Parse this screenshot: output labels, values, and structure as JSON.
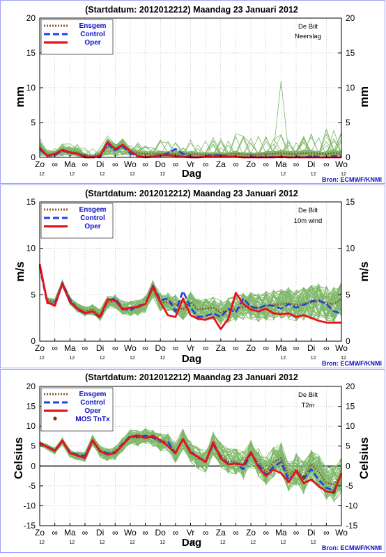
{
  "chart_data": [
    {
      "type": "line",
      "title": "(Startdatum: 2012012212)   Maandag   23 Januari   2012",
      "station": "De Bilt",
      "variable": "Neerslag",
      "ylabel": "mm",
      "xlabel": "Dag",
      "ylim": [
        0,
        20
      ],
      "yticks": [
        "0",
        "5",
        "10",
        "15",
        "20"
      ],
      "yticks_right": [
        "0",
        "5",
        "10",
        "15",
        "20"
      ],
      "xticks": [
        "Zo",
        "∞",
        "Ma",
        "∞",
        "Di",
        "∞",
        "Wo",
        "∞",
        "Do",
        "∞",
        "Vr",
        "∞",
        "Za",
        "∞",
        "Zo",
        "∞",
        "Ma",
        "∞",
        "Di",
        "∞",
        "Wo"
      ],
      "subticks": [
        "12",
        "12",
        "12",
        "12",
        "12",
        "12",
        "12",
        "12"
      ],
      "legend": [
        "Ensgem",
        "Control",
        "Oper"
      ],
      "source": "Bron: ECMWF/KNMI",
      "x": [
        0,
        1,
        2,
        3,
        4,
        5,
        6,
        7,
        8,
        9,
        10,
        11,
        12,
        13,
        14,
        15,
        16,
        17,
        18,
        19,
        20,
        21,
        22,
        23,
        24,
        25,
        26,
        27,
        28,
        29,
        30,
        31,
        32,
        33,
        34,
        35,
        36,
        37,
        38,
        39,
        40
      ],
      "series": [
        {
          "name": "Ensgem",
          "color": "#8b5a2b",
          "values": [
            1.3,
            0.4,
            0.5,
            0.9,
            0.8,
            0.7,
            0.3,
            0.2,
            0.4,
            1.6,
            1.1,
            1.5,
            0.8,
            0.6,
            0.5,
            0.5,
            0.5,
            0.5,
            0.5,
            0.5,
            0.5,
            0.4,
            0.4,
            0.4,
            0.4,
            0.4,
            0.5,
            0.4,
            0.4,
            0.4,
            0.5,
            0.5,
            0.6,
            0.5,
            0.5,
            0.6,
            0.6,
            0.5,
            0.5,
            0.6,
            0.5
          ]
        },
        {
          "name": "Control",
          "color": "#1f3fe6",
          "values": [
            1.2,
            0.2,
            0.3,
            1.0,
            0.6,
            0.6,
            0.1,
            0.0,
            0.0,
            2.0,
            1.0,
            1.6,
            0.6,
            0.1,
            0.0,
            0.2,
            0.2,
            0.6,
            1.2,
            0.5,
            0.1,
            0.0,
            0.2,
            0.3,
            0.3,
            0.1,
            0.1,
            0.0,
            0.1,
            0.1,
            0.0,
            0.1,
            0.0,
            0.0,
            0.1,
            0.0,
            0.2,
            0.1,
            0.0,
            0.2,
            0.1
          ]
        },
        {
          "name": "Oper",
          "color": "#e8101a",
          "values": [
            1.4,
            0.2,
            0.5,
            1.1,
            0.7,
            0.5,
            0.0,
            0.0,
            0.2,
            2.2,
            1.2,
            1.8,
            0.9,
            0.2,
            0.0,
            0.1,
            0.3,
            0.3,
            0.2,
            0.1,
            0.0,
            0.0,
            0.1,
            0.1,
            0.2,
            0.1,
            0.1,
            0.0,
            0.0,
            0.0,
            0.0,
            0.0,
            0.1,
            0.0,
            0.0,
            0.0,
            0.0,
            0.0,
            0.0,
            0.0,
            0.0
          ]
        }
      ]
    },
    {
      "type": "line",
      "title": "(Startdatum: 2012012212)   Maandag   23 Januari   2012",
      "station": "De Bilt",
      "variable": "10m wind",
      "ylabel": "m/s",
      "xlabel": "Dag",
      "ylim": [
        0,
        15
      ],
      "yticks": [
        "0",
        "5",
        "10",
        "15"
      ],
      "yticks_right": [
        "0",
        "5",
        "10",
        "15"
      ],
      "xticks": [
        "Zo",
        "∞",
        "Ma",
        "∞",
        "Di",
        "∞",
        "Wo",
        "∞",
        "Do",
        "∞",
        "Vr",
        "∞",
        "Za",
        "∞",
        "Zo",
        "∞",
        "Ma",
        "∞",
        "Di",
        "∞",
        "Wo"
      ],
      "subticks": [
        "12",
        "12",
        "12",
        "12",
        "12",
        "12",
        "12",
        "12"
      ],
      "legend": [
        "Ensgem",
        "Control",
        "Oper"
      ],
      "source": "Bron: ECMWF/KNMI",
      "x": [
        0,
        1,
        2,
        3,
        4,
        5,
        6,
        7,
        8,
        9,
        10,
        11,
        12,
        13,
        14,
        15,
        16,
        17,
        18,
        19,
        20,
        21,
        22,
        23,
        24,
        25,
        26,
        27,
        28,
        29,
        30,
        31,
        32,
        33,
        34,
        35,
        36,
        37,
        38,
        39,
        40
      ],
      "series": [
        {
          "name": "Ensgem",
          "color": "#8b5a2b",
          "values": [
            8.2,
            4.4,
            4.2,
            6.2,
            4.4,
            3.6,
            3.2,
            3.4,
            2.8,
            4.2,
            4.3,
            3.6,
            3.5,
            3.6,
            4.0,
            5.6,
            4.2,
            4.2,
            4.0,
            3.4,
            4.2,
            3.4,
            3.5,
            3.6,
            3.1,
            3.3,
            3.5,
            3.7,
            3.8,
            3.6,
            3.8,
            3.9,
            4.0,
            4.1,
            3.9,
            4.0,
            4.2,
            4.3,
            4.1,
            4.0,
            4.6
          ]
        },
        {
          "name": "Control",
          "color": "#1f3fe6",
          "values": [
            8.0,
            4.1,
            4.0,
            6.3,
            4.5,
            3.4,
            3.0,
            3.2,
            2.5,
            4.4,
            4.6,
            3.5,
            3.3,
            3.8,
            4.0,
            6.0,
            4.4,
            4.6,
            3.2,
            5.4,
            3.6,
            2.6,
            2.7,
            3.0,
            2.6,
            3.5,
            3.1,
            4.6,
            3.7,
            3.5,
            3.9,
            3.8,
            3.5,
            4.0,
            3.6,
            3.9,
            4.3,
            4.4,
            4.0,
            3.2,
            3.0
          ]
        },
        {
          "name": "Oper",
          "color": "#e8101a",
          "values": [
            8.3,
            4.2,
            3.8,
            6.2,
            4.2,
            3.5,
            3.0,
            3.2,
            2.6,
            4.5,
            4.4,
            3.4,
            3.6,
            3.7,
            4.0,
            5.9,
            4.2,
            2.8,
            2.6,
            4.6,
            2.8,
            2.4,
            2.3,
            2.6,
            1.3,
            2.4,
            5.2,
            4.0,
            3.4,
            3.2,
            3.5,
            3.0,
            2.9,
            3.0,
            2.6,
            2.8,
            2.5,
            2.2,
            2.0,
            2.0,
            2.0
          ]
        }
      ]
    },
    {
      "type": "line",
      "title": "(Startdatum: 2012012212)   Maandag   23 Januari   2012",
      "station": "De Bilt",
      "variable": "T2m",
      "ylabel": "Celsius",
      "xlabel": "Dag",
      "ylim": [
        -15,
        20
      ],
      "yticks": [
        "-15",
        "-10",
        "-5",
        "0",
        "5",
        "10",
        "15",
        "20"
      ],
      "yticks_right": [
        "-15",
        "-10",
        "-5",
        "0",
        "5",
        "10",
        "15",
        "20"
      ],
      "xticks": [
        "Zo",
        "∞",
        "Ma",
        "∞",
        "Di",
        "∞",
        "Wo",
        "∞",
        "Do",
        "∞",
        "Vr",
        "∞",
        "Za",
        "∞",
        "Zo",
        "∞",
        "Ma",
        "∞",
        "Di",
        "∞",
        "Wo"
      ],
      "subticks": [
        "12",
        "12",
        "12",
        "12",
        "12",
        "12",
        "12",
        "12",
        "12",
        "12"
      ],
      "legend": [
        "Ensgem",
        "Control",
        "Oper",
        "MOS TnTx"
      ],
      "source": "Bron: ECMWF/KNMI",
      "x": [
        0,
        1,
        2,
        3,
        4,
        5,
        6,
        7,
        8,
        9,
        10,
        11,
        12,
        13,
        14,
        15,
        16,
        17,
        18,
        19,
        20,
        21,
        22,
        23,
        24,
        25,
        26,
        27,
        28,
        29,
        30,
        31,
        32,
        33,
        34,
        35,
        36,
        37,
        38,
        39,
        40
      ],
      "series": [
        {
          "name": "Ensgem",
          "color": "#8b5a2b",
          "values": [
            5.6,
            4.8,
            3.8,
            6.2,
            3.2,
            2.6,
            2.3,
            6.4,
            3.6,
            2.8,
            3.2,
            5.4,
            7.3,
            7.0,
            7.5,
            7.0,
            6.0,
            5.8,
            3.3,
            6.8,
            3.6,
            2.0,
            1.2,
            5.6,
            2.8,
            1.3,
            1.0,
            0.2,
            3.0,
            0.9,
            -1.4,
            0.9,
            2.0,
            -2.4,
            -0.8,
            -2.8,
            0.4,
            -1.5,
            -4.2,
            -4.6,
            -2.3
          ]
        },
        {
          "name": "Control",
          "color": "#1f3fe6",
          "values": [
            5.7,
            4.9,
            3.9,
            6.3,
            3.5,
            2.8,
            2.6,
            6.3,
            3.9,
            3.2,
            3.5,
            5.6,
            7.5,
            7.3,
            7.6,
            7.2,
            6.2,
            6.1,
            3.2,
            6.7,
            3.7,
            2.1,
            1.2,
            5.4,
            2.3,
            0.6,
            0.6,
            -0.8,
            3.3,
            0.3,
            -2.2,
            -0.2,
            1.0,
            -3.5,
            -1.6,
            -3.3,
            -0.8,
            -3.5,
            -5.5,
            -6.2,
            -2.0
          ]
        },
        {
          "name": "Oper",
          "color": "#e8101a",
          "values": [
            5.8,
            4.8,
            3.8,
            6.4,
            3.3,
            2.6,
            2.0,
            6.5,
            3.7,
            2.9,
            3.3,
            5.3,
            7.3,
            7.7,
            7.0,
            7.6,
            6.5,
            5.0,
            3.2,
            6.8,
            3.3,
            2.3,
            1.0,
            6.0,
            1.9,
            0.4,
            0.6,
            0.3,
            3.5,
            -0.3,
            -2.5,
            -0.9,
            -1.8,
            -4.1,
            -1.2,
            -4.3,
            -3.4,
            -5.1,
            -6.4,
            -6.7,
            -1.8
          ]
        }
      ],
      "mos_points": [
        {
          "x": 35,
          "y": -2.8
        },
        {
          "x": 39,
          "y": -6.5
        }
      ]
    }
  ]
}
